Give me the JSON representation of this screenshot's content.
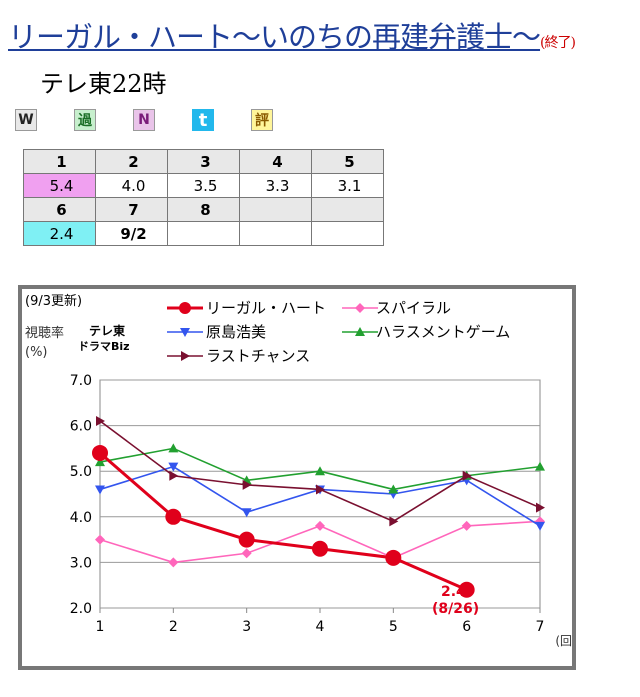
{
  "header": {
    "title": "リーガル・ハート〜いのちの再建弁護士〜",
    "title_suffix": "(終了)",
    "subtitle": "テレ東22時"
  },
  "icons": [
    {
      "name": "w-icon",
      "glyph": "W"
    },
    {
      "name": "kako-icon",
      "glyph": "過"
    },
    {
      "name": "n-icon",
      "glyph": "N"
    },
    {
      "name": "twitter-icon",
      "glyph": "t"
    },
    {
      "name": "hyo-icon",
      "glyph": "評"
    }
  ],
  "ratings_table": {
    "header1": [
      "1",
      "2",
      "3",
      "4",
      "5"
    ],
    "values1": [
      "5.4",
      "4.0",
      "3.5",
      "3.3",
      "3.1"
    ],
    "header2": [
      "6",
      "7",
      "8",
      "",
      ""
    ],
    "values2": [
      "2.4",
      "9/2",
      "",
      "",
      ""
    ]
  },
  "chart_data": {
    "type": "line",
    "update_note": "(9/3更新)",
    "ylabel": "視聴率",
    "ylabel_unit": "(%)",
    "xlabel": "(回)",
    "channel_label_1": "テレ東",
    "channel_label_2": "ドラマBiz",
    "x": [
      1,
      2,
      3,
      4,
      5,
      6,
      7
    ],
    "ylim": [
      2.0,
      7.0
    ],
    "yticks": [
      "2.0",
      "3.0",
      "4.0",
      "5.0",
      "6.0",
      "7.0"
    ],
    "grid": true,
    "series": [
      {
        "name": "リーガル・ハート",
        "color": "#e0001b",
        "marker": "circle",
        "values": [
          5.4,
          4.0,
          3.5,
          3.3,
          3.1,
          2.4,
          null
        ]
      },
      {
        "name": "スパイラル",
        "color": "#ff66bb",
        "marker": "diamond",
        "values": [
          3.5,
          3.0,
          3.2,
          3.8,
          3.1,
          3.8,
          3.9
        ]
      },
      {
        "name": "原島浩美",
        "color": "#3355ee",
        "marker": "triangle-down",
        "values": [
          4.6,
          5.1,
          4.1,
          4.6,
          4.5,
          4.8,
          3.8
        ]
      },
      {
        "name": "ハラスメントゲーム",
        "color": "#22a030",
        "marker": "triangle-up",
        "values": [
          5.2,
          5.5,
          4.8,
          5.0,
          4.6,
          4.9,
          5.1
        ]
      },
      {
        "name": "ラストチャンス",
        "color": "#7a1030",
        "marker": "triangle-right",
        "values": [
          6.1,
          4.9,
          4.7,
          4.6,
          3.9,
          4.9,
          4.2
        ]
      }
    ],
    "annotation_value": "2.4",
    "annotation_date": "(8/26)",
    "annotation_color": "#e0001b"
  }
}
